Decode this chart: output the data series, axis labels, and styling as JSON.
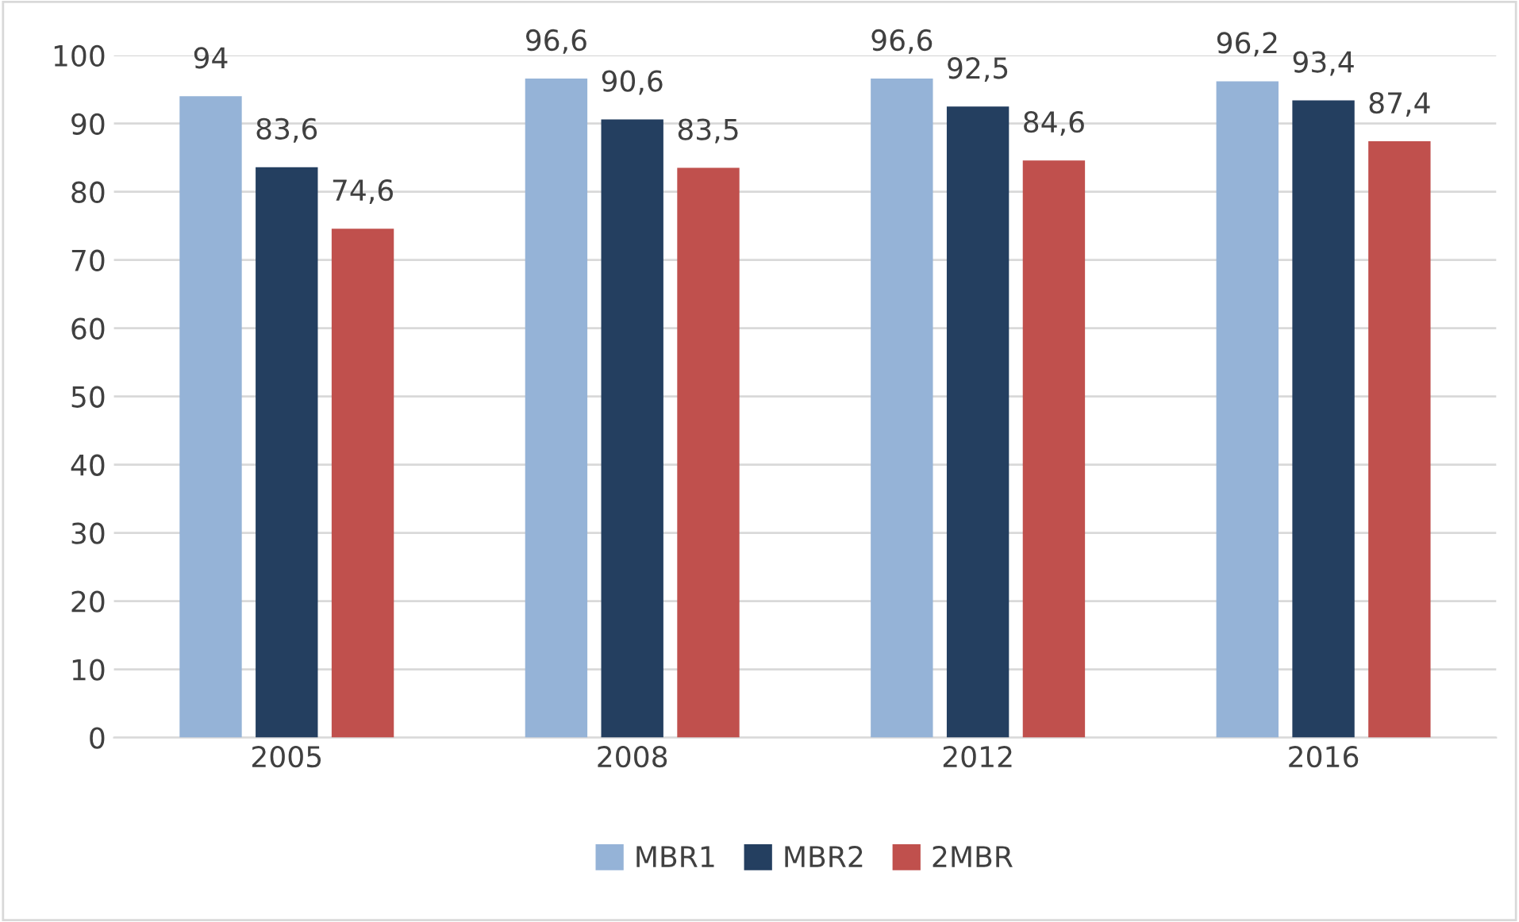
{
  "chart_data": {
    "type": "bar",
    "categories": [
      "2005",
      "2008",
      "2012",
      "2016"
    ],
    "series": [
      {
        "name": "MBR1",
        "color": "#95b3d7",
        "values": [
          94,
          96.6,
          96.6,
          96.2
        ],
        "value_labels": [
          "94",
          "96,6",
          "96,6",
          "96,2"
        ]
      },
      {
        "name": "MBR2",
        "color": "#243f60",
        "values": [
          83.6,
          90.6,
          92.5,
          93.4
        ],
        "value_labels": [
          "83,6",
          "90,6",
          "92,5",
          "93,4"
        ]
      },
      {
        "name": "2MBR",
        "color": "#c0504d",
        "values": [
          74.6,
          83.5,
          84.6,
          87.4
        ],
        "value_labels": [
          "74,6",
          "83,5",
          "84,6",
          "87,4"
        ]
      }
    ],
    "ylim": [
      0,
      100
    ],
    "yticks": [
      0,
      10,
      20,
      30,
      40,
      50,
      60,
      70,
      80,
      90,
      100
    ],
    "grid": "y",
    "legend": "bottom"
  }
}
